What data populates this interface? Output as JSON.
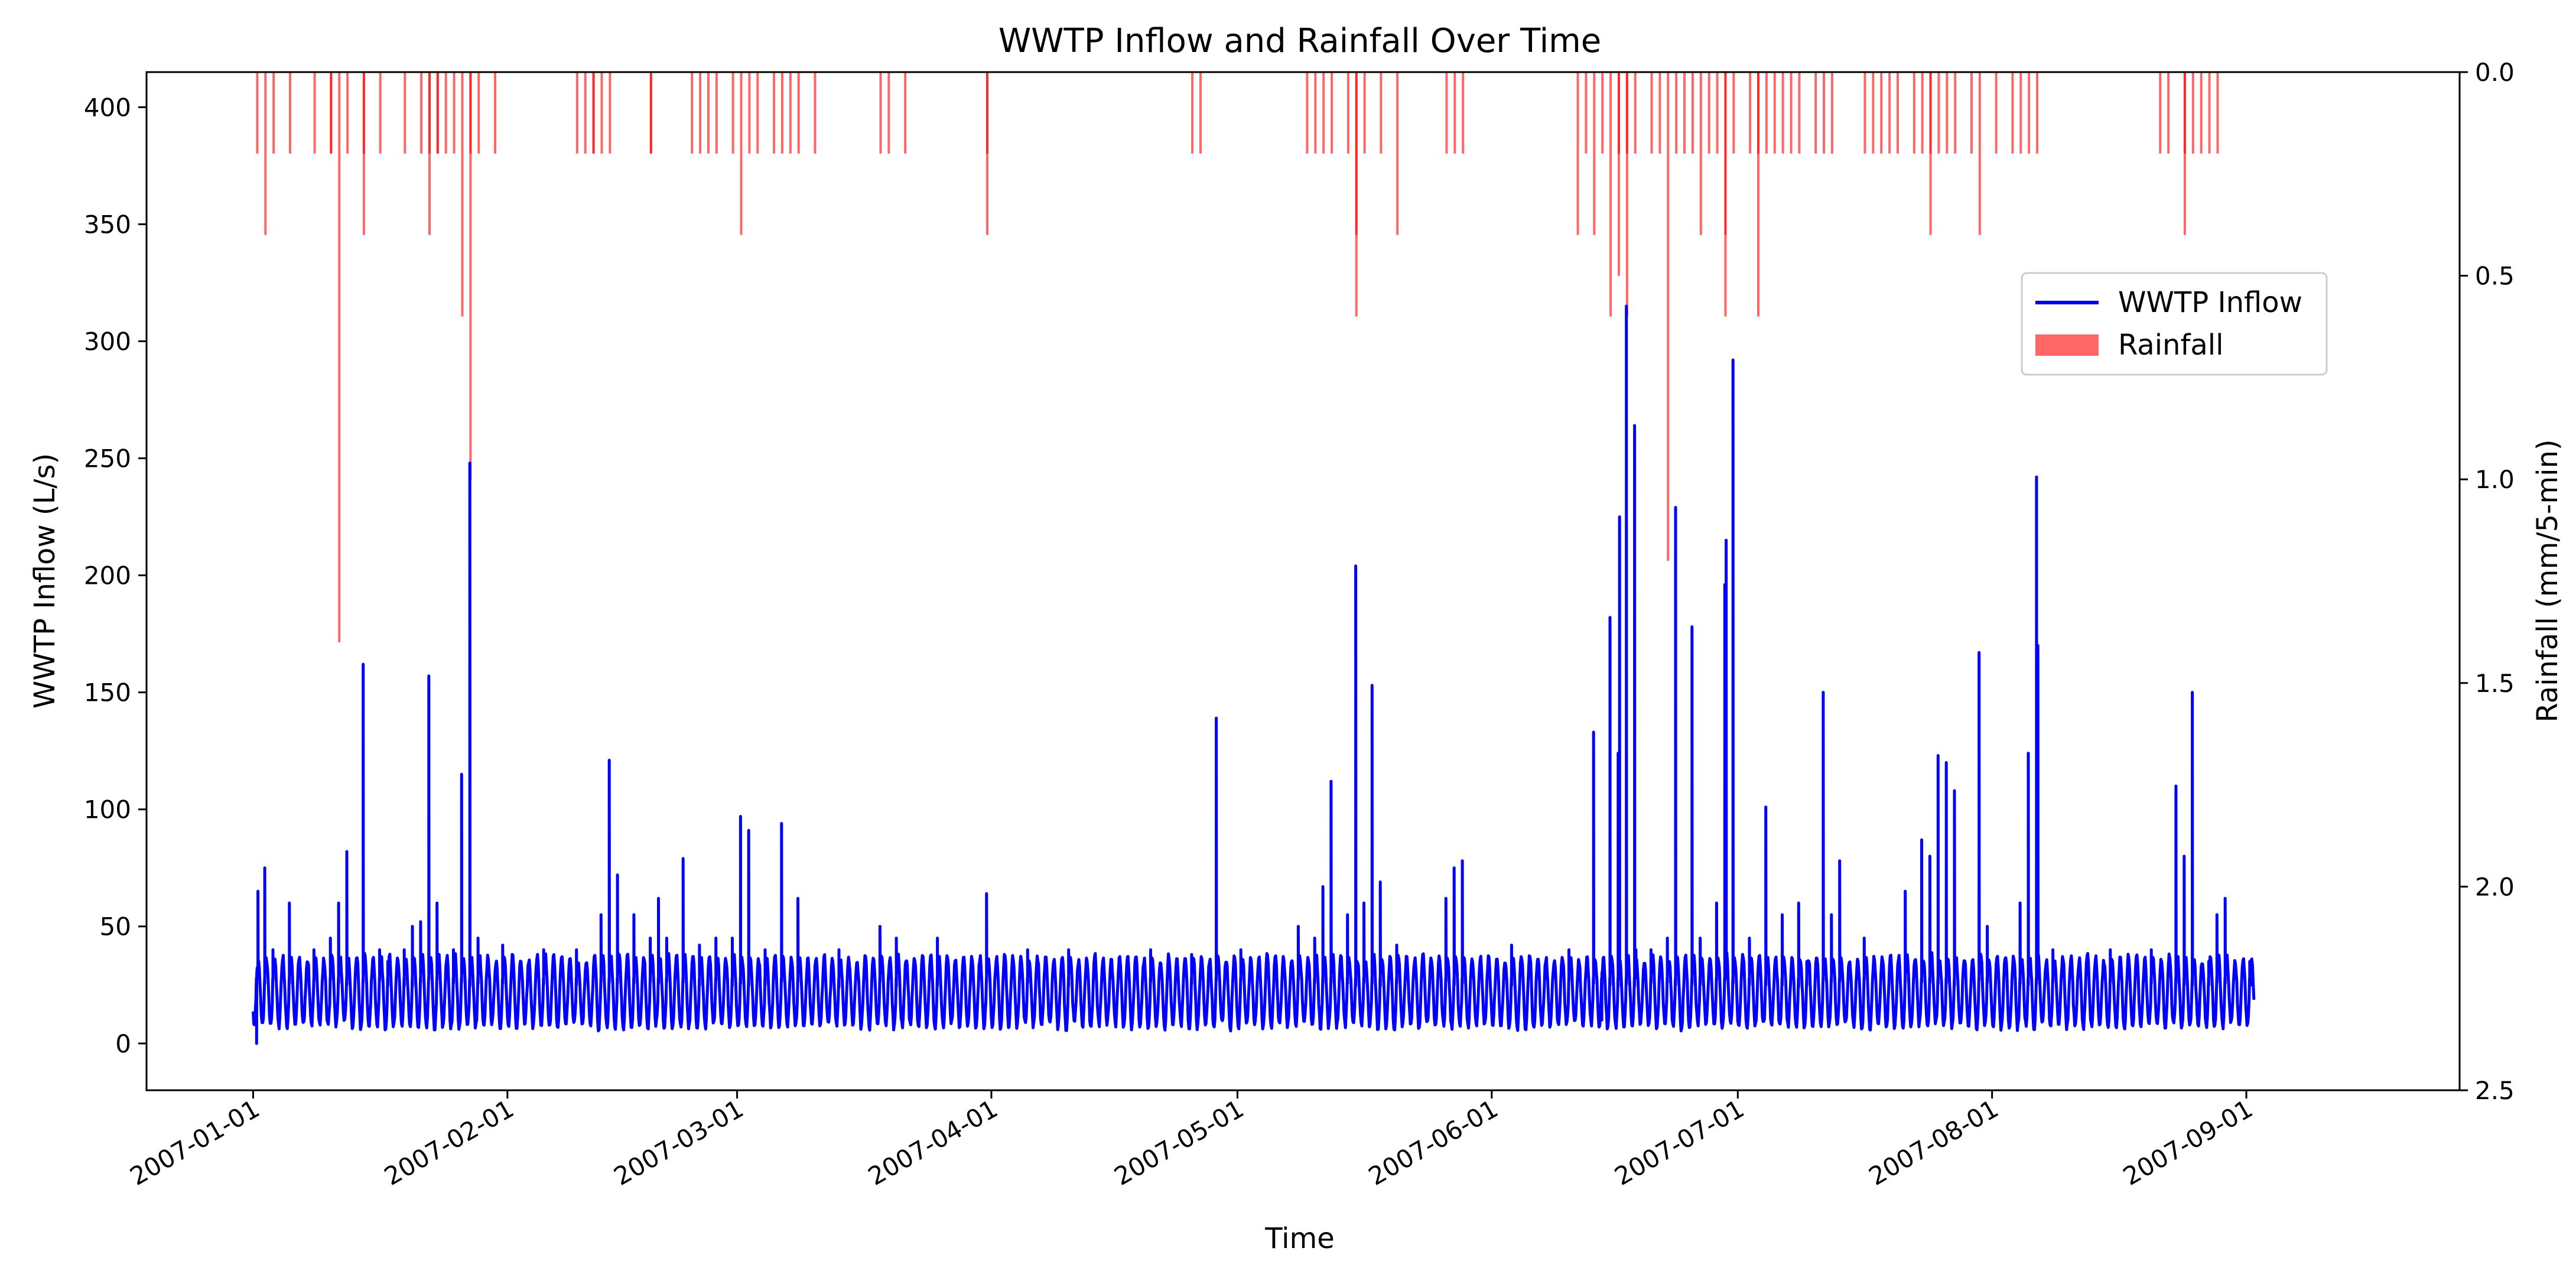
{
  "chart_data": {
    "type": "line",
    "title": "WWTP Inflow and Rainfall Over Time",
    "xlabel": "Time",
    "ylabel": "WWTP Inflow (L/s)",
    "y2label": "Rainfall (mm/5-min)",
    "xlim": [
      "2006-12-19",
      "2007-09-27"
    ],
    "ylim": [
      -20,
      415
    ],
    "y2lim": [
      2.5,
      0.0
    ],
    "y2_inverted": true,
    "grid": false,
    "legend_position": "upper-right",
    "x_ticks": [
      "2007-01-01",
      "2007-02-01",
      "2007-03-01",
      "2007-04-01",
      "2007-05-01",
      "2007-06-01",
      "2007-07-01",
      "2007-08-01",
      "2007-09-01"
    ],
    "y_ticks": [
      0,
      50,
      100,
      150,
      200,
      250,
      300,
      350,
      400
    ],
    "y2_ticks": [
      "0.0",
      "0.5",
      "1.0",
      "1.5",
      "2.0",
      "2.5"
    ],
    "series": [
      {
        "name": "WWTP Inflow",
        "kind": "line",
        "color": "#0000ff",
        "base_range": [
          6,
          38
        ],
        "peaks": [
          [
            "2007-01-01",
            0
          ],
          [
            "2007-01-01",
            65
          ],
          [
            "2007-01-02",
            75
          ],
          [
            "2007-01-03",
            40
          ],
          [
            "2007-01-05",
            60
          ],
          [
            "2007-01-08",
            40
          ],
          [
            "2007-01-10",
            45
          ],
          [
            "2007-01-11",
            60
          ],
          [
            "2007-01-12",
            82
          ],
          [
            "2007-01-14",
            162
          ],
          [
            "2007-01-16",
            40
          ],
          [
            "2007-01-17",
            35
          ],
          [
            "2007-01-19",
            40
          ],
          [
            "2007-01-20",
            50
          ],
          [
            "2007-01-21",
            52
          ],
          [
            "2007-01-22",
            157
          ],
          [
            "2007-01-23",
            60
          ],
          [
            "2007-01-25",
            40
          ],
          [
            "2007-01-26",
            115
          ],
          [
            "2007-01-27",
            248
          ],
          [
            "2007-01-28",
            45
          ],
          [
            "2007-01-31",
            42
          ],
          [
            "2007-02-05",
            40
          ],
          [
            "2007-02-09",
            40
          ],
          [
            "2007-02-12",
            55
          ],
          [
            "2007-02-13",
            121
          ],
          [
            "2007-02-14",
            72
          ],
          [
            "2007-02-16",
            55
          ],
          [
            "2007-02-18",
            45
          ],
          [
            "2007-02-19",
            62
          ],
          [
            "2007-02-20",
            45
          ],
          [
            "2007-02-22",
            79
          ],
          [
            "2007-02-24",
            42
          ],
          [
            "2007-02-26",
            45
          ],
          [
            "2007-02-28",
            45
          ],
          [
            "2007-03-01",
            97
          ],
          [
            "2007-03-02",
            91
          ],
          [
            "2007-03-04",
            40
          ],
          [
            "2007-03-06",
            94
          ],
          [
            "2007-03-08",
            62
          ],
          [
            "2007-03-13",
            40
          ],
          [
            "2007-03-18",
            50
          ],
          [
            "2007-03-20",
            45
          ],
          [
            "2007-03-25",
            45
          ],
          [
            "2007-03-31",
            64
          ],
          [
            "2007-04-05",
            40
          ],
          [
            "2007-04-10",
            40
          ],
          [
            "2007-04-20",
            40
          ],
          [
            "2007-04-25",
            38
          ],
          [
            "2007-04-28",
            139
          ],
          [
            "2007-05-01",
            40
          ],
          [
            "2007-05-08",
            50
          ],
          [
            "2007-05-10",
            45
          ],
          [
            "2007-05-11",
            67
          ],
          [
            "2007-05-12",
            112
          ],
          [
            "2007-05-14",
            55
          ],
          [
            "2007-05-15",
            204
          ],
          [
            "2007-05-16",
            60
          ],
          [
            "2007-05-17",
            153
          ],
          [
            "2007-05-18",
            69
          ],
          [
            "2007-05-20",
            42
          ],
          [
            "2007-05-26",
            62
          ],
          [
            "2007-05-27",
            75
          ],
          [
            "2007-05-28",
            78
          ],
          [
            "2007-06-03",
            42
          ],
          [
            "2007-06-10",
            40
          ],
          [
            "2007-06-13",
            133
          ],
          [
            "2007-06-14",
            10
          ],
          [
            "2007-06-15",
            182
          ],
          [
            "2007-06-16",
            124
          ],
          [
            "2007-06-16",
            225
          ],
          [
            "2007-06-17",
            315
          ],
          [
            "2007-06-18",
            264
          ],
          [
            "2007-06-18",
            40
          ],
          [
            "2007-06-20",
            40
          ],
          [
            "2007-06-22",
            45
          ],
          [
            "2007-06-23",
            229
          ],
          [
            "2007-06-25",
            178
          ],
          [
            "2007-06-26",
            45
          ],
          [
            "2007-06-28",
            60
          ],
          [
            "2007-06-29",
            196
          ],
          [
            "2007-06-29",
            215
          ],
          [
            "2007-06-30",
            292
          ],
          [
            "2007-07-02",
            45
          ],
          [
            "2007-07-04",
            101
          ],
          [
            "2007-07-06",
            55
          ],
          [
            "2007-07-08",
            60
          ],
          [
            "2007-07-09",
            35
          ],
          [
            "2007-07-11",
            150
          ],
          [
            "2007-07-12",
            55
          ],
          [
            "2007-07-13",
            78
          ],
          [
            "2007-07-16",
            45
          ],
          [
            "2007-07-21",
            65
          ],
          [
            "2007-07-23",
            87
          ],
          [
            "2007-07-24",
            80
          ],
          [
            "2007-07-25",
            123
          ],
          [
            "2007-07-26",
            120
          ],
          [
            "2007-07-27",
            108
          ],
          [
            "2007-07-30",
            167
          ],
          [
            "2007-07-31",
            50
          ],
          [
            "2007-08-04",
            60
          ],
          [
            "2007-08-05",
            124
          ],
          [
            "2007-08-06",
            242
          ],
          [
            "2007-08-06",
            170
          ],
          [
            "2007-08-08",
            40
          ],
          [
            "2007-08-15",
            40
          ],
          [
            "2007-08-20",
            40
          ],
          [
            "2007-08-23",
            110
          ],
          [
            "2007-08-24",
            80
          ],
          [
            "2007-08-25",
            150
          ],
          [
            "2007-08-27",
            35
          ],
          [
            "2007-08-28",
            55
          ],
          [
            "2007-08-29",
            62
          ],
          [
            "2007-09-01",
            35
          ],
          [
            "2007-09-01",
            25
          ]
        ]
      },
      {
        "name": "Rainfall",
        "kind": "bar",
        "color": "#ff0000",
        "alpha": 0.6,
        "events": [
          [
            "2007-01-01",
            0.2
          ],
          [
            "2007-01-02",
            0.4
          ],
          [
            "2007-01-03",
            0.2
          ],
          [
            "2007-01-05",
            0.2
          ],
          [
            "2007-01-08",
            0.2
          ],
          [
            "2007-01-10",
            0.2
          ],
          [
            "2007-01-10",
            0.2
          ],
          [
            "2007-01-11",
            1.4
          ],
          [
            "2007-01-12",
            0.2
          ],
          [
            "2007-01-14",
            0.2
          ],
          [
            "2007-01-14",
            0.4
          ],
          [
            "2007-01-16",
            0.2
          ],
          [
            "2007-01-19",
            0.2
          ],
          [
            "2007-01-21",
            0.2
          ],
          [
            "2007-01-22",
            0.4
          ],
          [
            "2007-01-22",
            0.2
          ],
          [
            "2007-01-23",
            0.2
          ],
          [
            "2007-01-23",
            0.2
          ],
          [
            "2007-01-24",
            0.2
          ],
          [
            "2007-01-25",
            0.2
          ],
          [
            "2007-01-26",
            0.6
          ],
          [
            "2007-01-27",
            1.0
          ],
          [
            "2007-01-27",
            0.2
          ],
          [
            "2007-01-28",
            0.2
          ],
          [
            "2007-01-30",
            0.2
          ],
          [
            "2007-02-09",
            0.2
          ],
          [
            "2007-02-10",
            0.2
          ],
          [
            "2007-02-11",
            0.2
          ],
          [
            "2007-02-11",
            0.2
          ],
          [
            "2007-02-12",
            0.2
          ],
          [
            "2007-02-13",
            0.2
          ],
          [
            "2007-02-18",
            0.2
          ],
          [
            "2007-02-18",
            0.2
          ],
          [
            "2007-02-23",
            0.2
          ],
          [
            "2007-02-24",
            0.2
          ],
          [
            "2007-02-25",
            0.2
          ],
          [
            "2007-02-26",
            0.2
          ],
          [
            "2007-02-28",
            0.2
          ],
          [
            "2007-03-01",
            0.4
          ],
          [
            "2007-03-02",
            0.2
          ],
          [
            "2007-03-03",
            0.2
          ],
          [
            "2007-03-05",
            0.2
          ],
          [
            "2007-03-06",
            0.2
          ],
          [
            "2007-03-07",
            0.2
          ],
          [
            "2007-03-08",
            0.2
          ],
          [
            "2007-03-10",
            0.2
          ],
          [
            "2007-03-18",
            0.2
          ],
          [
            "2007-03-19",
            0.2
          ],
          [
            "2007-03-21",
            0.2
          ],
          [
            "2007-03-31",
            0.2
          ],
          [
            "2007-03-31",
            0.4
          ],
          [
            "2007-04-25",
            0.2
          ],
          [
            "2007-04-26",
            0.2
          ],
          [
            "2007-05-09",
            0.2
          ],
          [
            "2007-05-10",
            0.2
          ],
          [
            "2007-05-11",
            0.2
          ],
          [
            "2007-05-12",
            0.2
          ],
          [
            "2007-05-14",
            0.2
          ],
          [
            "2007-05-15",
            0.4
          ],
          [
            "2007-05-15",
            0.6
          ],
          [
            "2007-05-16",
            0.2
          ],
          [
            "2007-05-18",
            0.2
          ],
          [
            "2007-05-20",
            0.4
          ],
          [
            "2007-05-26",
            0.2
          ],
          [
            "2007-05-27",
            0.2
          ],
          [
            "2007-05-28",
            0.2
          ],
          [
            "2007-06-11",
            0.4
          ],
          [
            "2007-06-12",
            0.2
          ],
          [
            "2007-06-13",
            0.4
          ],
          [
            "2007-06-14",
            0.2
          ],
          [
            "2007-06-15",
            0.6
          ],
          [
            "2007-06-16",
            0.2
          ],
          [
            "2007-06-16",
            0.5
          ],
          [
            "2007-06-17",
            0.6
          ],
          [
            "2007-06-17",
            0.2
          ],
          [
            "2007-06-18",
            0.2
          ],
          [
            "2007-06-20",
            0.2
          ],
          [
            "2007-06-21",
            0.2
          ],
          [
            "2007-06-22",
            1.2
          ],
          [
            "2007-06-23",
            0.2
          ],
          [
            "2007-06-24",
            0.2
          ],
          [
            "2007-06-25",
            0.2
          ],
          [
            "2007-06-26",
            0.4
          ],
          [
            "2007-06-27",
            0.2
          ],
          [
            "2007-06-28",
            0.2
          ],
          [
            "2007-06-29",
            0.4
          ],
          [
            "2007-06-29",
            0.6
          ],
          [
            "2007-06-30",
            0.2
          ],
          [
            "2007-07-02",
            0.2
          ],
          [
            "2007-07-03",
            0.2
          ],
          [
            "2007-07-03",
            0.6
          ],
          [
            "2007-07-04",
            0.2
          ],
          [
            "2007-07-05",
            0.2
          ],
          [
            "2007-07-06",
            0.2
          ],
          [
            "2007-07-07",
            0.2
          ],
          [
            "2007-07-08",
            0.2
          ],
          [
            "2007-07-10",
            0.2
          ],
          [
            "2007-07-11",
            0.2
          ],
          [
            "2007-07-12",
            0.2
          ],
          [
            "2007-07-16",
            0.2
          ],
          [
            "2007-07-17",
            0.2
          ],
          [
            "2007-07-18",
            0.2
          ],
          [
            "2007-07-19",
            0.2
          ],
          [
            "2007-07-20",
            0.2
          ],
          [
            "2007-07-22",
            0.2
          ],
          [
            "2007-07-23",
            0.2
          ],
          [
            "2007-07-24",
            0.2
          ],
          [
            "2007-07-24",
            0.4
          ],
          [
            "2007-07-25",
            0.2
          ],
          [
            "2007-07-26",
            0.2
          ],
          [
            "2007-07-27",
            0.2
          ],
          [
            "2007-07-29",
            0.2
          ],
          [
            "2007-07-30",
            0.4
          ],
          [
            "2007-08-01",
            0.2
          ],
          [
            "2007-08-03",
            0.2
          ],
          [
            "2007-08-04",
            0.2
          ],
          [
            "2007-08-05",
            0.2
          ],
          [
            "2007-08-06",
            0.2
          ],
          [
            "2007-08-21",
            0.2
          ],
          [
            "2007-08-22",
            0.2
          ],
          [
            "2007-08-24",
            0.2
          ],
          [
            "2007-08-24",
            0.4
          ],
          [
            "2007-08-25",
            0.2
          ],
          [
            "2007-08-26",
            0.2
          ],
          [
            "2007-08-27",
            0.2
          ],
          [
            "2007-08-28",
            0.2
          ]
        ]
      }
    ]
  }
}
